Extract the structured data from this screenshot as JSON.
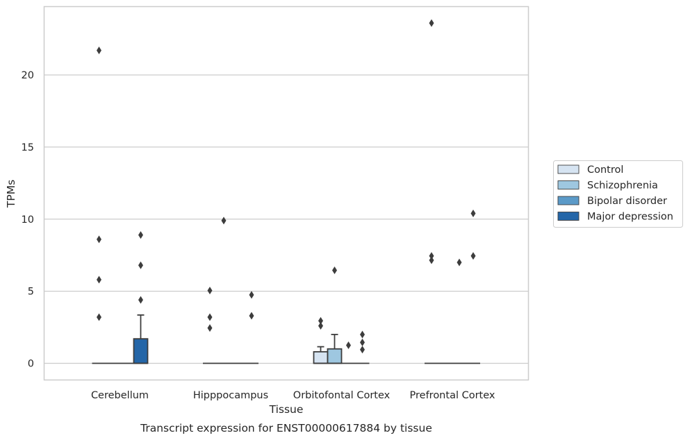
{
  "chart_data": {
    "type": "box",
    "title": "Transcript expression for ENST00000617884 by tissue",
    "xlabel": "Tissue",
    "ylabel": "TPMs",
    "ylim": [
      -1.1,
      24.6
    ],
    "yticks": [
      0,
      5,
      10,
      15,
      20
    ],
    "grid": true,
    "legend_placement": "center-right outside",
    "categories": [
      "Cerebellum",
      "Hipppocampus",
      "Orbitofontal Cortex",
      "Prefrontal Cortex"
    ],
    "series": [
      {
        "name": "Control",
        "color": "#d6e4f2",
        "boxes": [
          {
            "q1": 0,
            "median": 0,
            "q3": 0,
            "whisker_low": 0,
            "whisker_high": 0,
            "outliers": [
              21.7,
              8.6,
              5.8,
              3.2
            ]
          },
          {
            "q1": 0,
            "median": 0,
            "q3": 0,
            "whisker_low": 0,
            "whisker_high": 0,
            "outliers": [
              5.05,
              3.2,
              2.45
            ]
          },
          {
            "q1": 0,
            "median": 0,
            "q3": 0.8,
            "whisker_low": 0,
            "whisker_high": 1.15,
            "outliers": [
              2.95,
              2.6
            ]
          },
          {
            "q1": 0,
            "median": 0,
            "q3": 0,
            "whisker_low": 0,
            "whisker_high": 0,
            "outliers": [
              23.6,
              7.45,
              7.15
            ]
          }
        ]
      },
      {
        "name": "Schizophrenia",
        "color": "#9ec7e0",
        "boxes": [
          {
            "q1": 0,
            "median": 0,
            "q3": 0,
            "whisker_low": 0,
            "whisker_high": 0,
            "outliers": []
          },
          {
            "q1": 0,
            "median": 0,
            "q3": 0,
            "whisker_low": 0,
            "whisker_high": 0,
            "outliers": [
              9.9
            ]
          },
          {
            "q1": 0,
            "median": 0,
            "q3": 1.0,
            "whisker_low": 0,
            "whisker_high": 2.0,
            "outliers": [
              6.45
            ]
          },
          {
            "q1": 0,
            "median": 0,
            "q3": 0,
            "whisker_low": 0,
            "whisker_high": 0,
            "outliers": []
          }
        ]
      },
      {
        "name": "Bipolar disorder",
        "color": "#5b9ac8",
        "boxes": [
          {
            "q1": 0,
            "median": 0,
            "q3": 0,
            "whisker_low": 0,
            "whisker_high": 0,
            "outliers": []
          },
          {
            "q1": 0,
            "median": 0,
            "q3": 0,
            "whisker_low": 0,
            "whisker_high": 0,
            "outliers": []
          },
          {
            "q1": 0,
            "median": 0,
            "q3": 0,
            "whisker_low": 0,
            "whisker_high": 0,
            "outliers": [
              1.25
            ]
          },
          {
            "q1": 0,
            "median": 0,
            "q3": 0,
            "whisker_low": 0,
            "whisker_high": 0,
            "outliers": [
              7.0
            ]
          }
        ]
      },
      {
        "name": "Major depression",
        "color": "#2466a8",
        "boxes": [
          {
            "q1": 0,
            "median": 0,
            "q3": 1.7,
            "whisker_low": 0,
            "whisker_high": 3.35,
            "outliers": [
              8.9,
              6.8,
              4.4
            ]
          },
          {
            "q1": 0,
            "median": 0,
            "q3": 0,
            "whisker_low": 0,
            "whisker_high": 0,
            "outliers": [
              4.75,
              3.3
            ]
          },
          {
            "q1": 0,
            "median": 0,
            "q3": 0,
            "whisker_low": 0,
            "whisker_high": 0,
            "outliers": [
              2.0,
              1.45,
              0.95
            ]
          },
          {
            "q1": 0,
            "median": 0,
            "q3": 0,
            "whisker_low": 0,
            "whisker_high": 0,
            "outliers": [
              10.4,
              7.45
            ]
          }
        ]
      }
    ]
  }
}
